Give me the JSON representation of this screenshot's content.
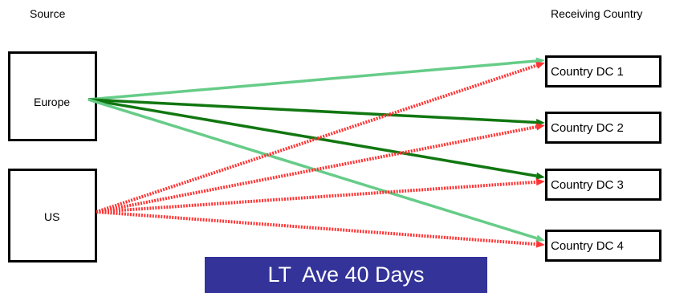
{
  "headers": {
    "source": "Source",
    "receiving": "Receiving Country"
  },
  "sources": [
    {
      "id": "europe",
      "label": "Europe"
    },
    {
      "id": "us",
      "label": "US"
    }
  ],
  "destinations": [
    {
      "id": "dc1",
      "label": "Country DC 1"
    },
    {
      "id": "dc2",
      "label": "Country DC 2"
    },
    {
      "id": "dc3",
      "label": "Country DC 3"
    },
    {
      "id": "dc4",
      "label": "Country DC 4"
    }
  ],
  "flows": [
    {
      "from": "europe",
      "to": "dc1",
      "style": "solid",
      "color": "#66cc88"
    },
    {
      "from": "europe",
      "to": "dc2",
      "style": "solid",
      "color": "#117711"
    },
    {
      "from": "europe",
      "to": "dc3",
      "style": "solid",
      "color": "#117711"
    },
    {
      "from": "europe",
      "to": "dc4",
      "style": "solid",
      "color": "#66cc88"
    },
    {
      "from": "us",
      "to": "dc1",
      "style": "dotted",
      "color": "#ff3333"
    },
    {
      "from": "us",
      "to": "dc2",
      "style": "dotted",
      "color": "#ff3333"
    },
    {
      "from": "us",
      "to": "dc3",
      "style": "dotted",
      "color": "#ff3333"
    },
    {
      "from": "us",
      "to": "dc4",
      "style": "dotted",
      "color": "#ff3333"
    }
  ],
  "banner": {
    "text": "LT  Ave 40 Days",
    "background": "#333399",
    "color": "#ffffff"
  }
}
